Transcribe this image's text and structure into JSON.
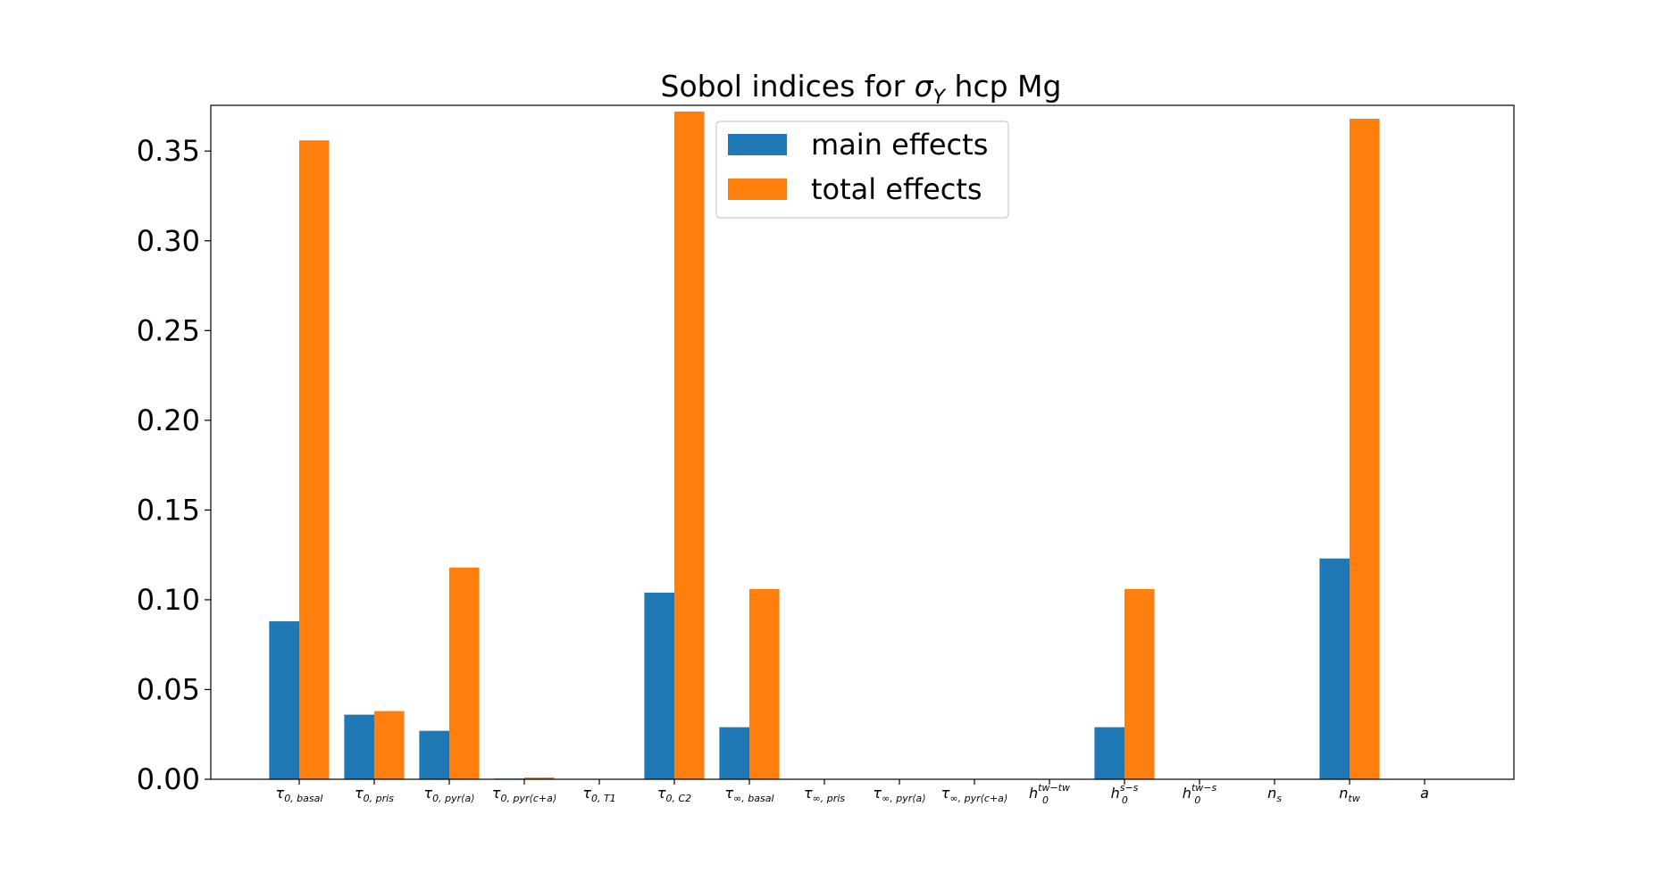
{
  "chart_data": {
    "type": "bar",
    "title": "Sobol indices for σY hcp Mg",
    "title_parts": {
      "prefix": "Sobol indices for ",
      "symbol": "σ",
      "subscript": "Y",
      "suffix": " hcp Mg"
    },
    "xlabel": "",
    "ylabel": "",
    "ylim": [
      0,
      0.39
    ],
    "yticks": [
      "0.00",
      "0.05",
      "0.10",
      "0.15",
      "0.20",
      "0.25",
      "0.30",
      "0.35"
    ],
    "ytick_values": [
      0,
      0.05,
      0.1,
      0.15,
      0.2,
      0.25,
      0.3,
      0.35
    ],
    "grid": false,
    "legend_position": "top-center",
    "categories": [
      "τ0,basal",
      "τ0,pris",
      "τ0,pyr⟨a⟩",
      "τ0,pyr⟨c+a⟩",
      "τ0,T1",
      "τ0,C2",
      "τ∞,basal",
      "τ∞,pris",
      "τ∞,pyr⟨a⟩",
      "τ∞,pyr⟨c+a⟩",
      "h0tw−tw",
      "h0s−s",
      "h0tw−s",
      "ns",
      "ntw",
      "a"
    ],
    "category_parts": [
      {
        "base": "τ",
        "sub": "0, basal",
        "sup": ""
      },
      {
        "base": "τ",
        "sub": "0, pris",
        "sup": ""
      },
      {
        "base": "τ",
        "sub": "0, pyr⟨a⟩",
        "sup": ""
      },
      {
        "base": "τ",
        "sub": "0, pyr⟨c+a⟩",
        "sup": ""
      },
      {
        "base": "τ",
        "sub": "0, T1",
        "sup": ""
      },
      {
        "base": "τ",
        "sub": "0, C2",
        "sup": ""
      },
      {
        "base": "τ",
        "sub": "∞, basal",
        "sup": ""
      },
      {
        "base": "τ",
        "sub": "∞, pris",
        "sup": ""
      },
      {
        "base": "τ",
        "sub": "∞, pyr⟨a⟩",
        "sup": ""
      },
      {
        "base": "τ",
        "sub": "∞, pyr⟨c+a⟩",
        "sup": ""
      },
      {
        "base": "h",
        "sub": "0",
        "sup": "tw−tw"
      },
      {
        "base": "h",
        "sub": "0",
        "sup": "s−s"
      },
      {
        "base": "h",
        "sub": "0",
        "sup": "tw−s"
      },
      {
        "base": "n",
        "sub": "s",
        "sup": ""
      },
      {
        "base": "n",
        "sub": "tw",
        "sup": ""
      },
      {
        "base": "a",
        "sub": "",
        "sup": ""
      }
    ],
    "series": [
      {
        "name": "main effects",
        "color": "#1f77b4",
        "values": [
          0.088,
          0.036,
          0.027,
          0.0004,
          0,
          0.104,
          0.029,
          0,
          0,
          0,
          0,
          0.029,
          0,
          0,
          0.123,
          0
        ]
      },
      {
        "name": "total effects",
        "color": "#ff7f0e",
        "values": [
          0.356,
          0.038,
          0.118,
          0.001,
          0,
          0.372,
          0.106,
          0,
          0,
          0,
          0,
          0.106,
          0,
          0,
          0.368,
          0
        ]
      }
    ]
  }
}
